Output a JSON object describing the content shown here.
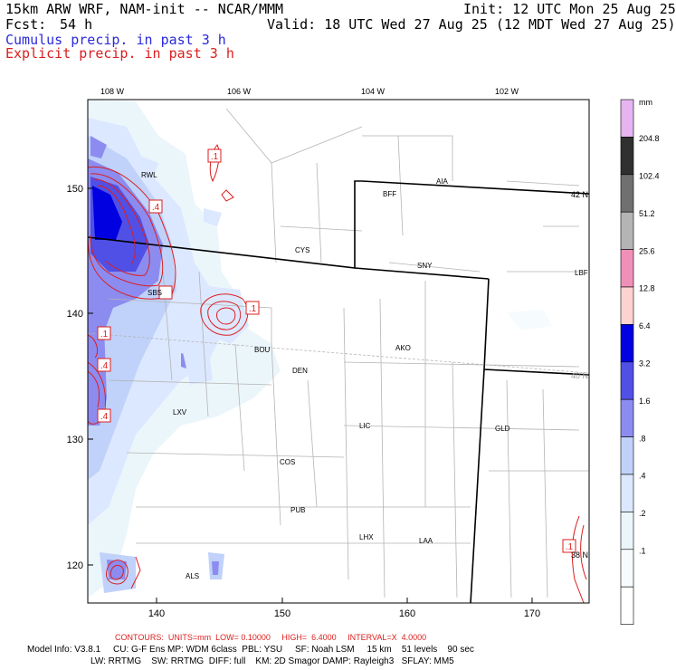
{
  "header": {
    "model_title": "15km ARW WRF, NAM-init -- NCAR/MMM",
    "fcst_label": "Fcst:",
    "fcst_value": "54 h",
    "init": "Init: 12 UTC Mon 25 Aug 25",
    "valid": "Valid: 18 UTC Wed 27 Aug 25 (12 MDT Wed 27 Aug 25)",
    "field1": "Cumulus precip. in past 3 h",
    "field2": "Explicit precip. in past 3 h",
    "field1_color": "#2a2adc",
    "field2_color": "#dc1e1e"
  },
  "axes": {
    "lon_top": [
      "108 W",
      "106 W",
      "104 W",
      "102 W"
    ],
    "lat_right": [
      "42 N",
      "40 N",
      "38 N"
    ],
    "x_ticks": [
      "140",
      "150",
      "160",
      "170"
    ],
    "y_ticks": [
      "150",
      "140",
      "130",
      "120"
    ]
  },
  "stations": [
    "RWL",
    "BFF",
    "AIA",
    "CYS",
    "SNY",
    "LBF",
    "SBS",
    "AKO",
    "BOU",
    "DEN",
    "LXV",
    "LIC",
    "GLD",
    "COS",
    "PUB",
    "LHX",
    "LAA",
    "ALS"
  ],
  "contour_labels": [
    ".1",
    ".4",
    ".1",
    ".1",
    ".4",
    ".4",
    ".1"
  ],
  "colorbar": {
    "unit": "mm",
    "labels": [
      "204.8",
      "102.4",
      "51.2",
      "25.6",
      "12.8",
      "6.4",
      "3.2",
      "1.6",
      ".8",
      ".4",
      ".2",
      ".1"
    ],
    "colors": [
      "#e6b4f0",
      "#303030",
      "#707070",
      "#b4b4b4",
      "#f090b8",
      "#ffd2d2",
      "#0000e0",
      "#5050e6",
      "#8c8cf0",
      "#c0d2fa",
      "#dce8ff",
      "#ebf6fb",
      "#f6fbfd",
      "#ffffff"
    ]
  },
  "footer": {
    "contours": "CONTOURS:  UNITS=mm  LOW= 0.10000     HIGH=  6.4000     INTERVAL=X  4.0000",
    "model_info": "Model Info: V3.8.1     CU: G-F Ens MP: WDM 6class  PBL: YSU     SF: Noah LSM     15 km    51 levels    90 sec",
    "model_info2": "LW: RRTMG    SW: RRTMG  DIFF: full    KM: 2D Smagor DAMP: Rayleigh3   SFLAY: MM5",
    "contours_color": "#dc1e1e"
  }
}
